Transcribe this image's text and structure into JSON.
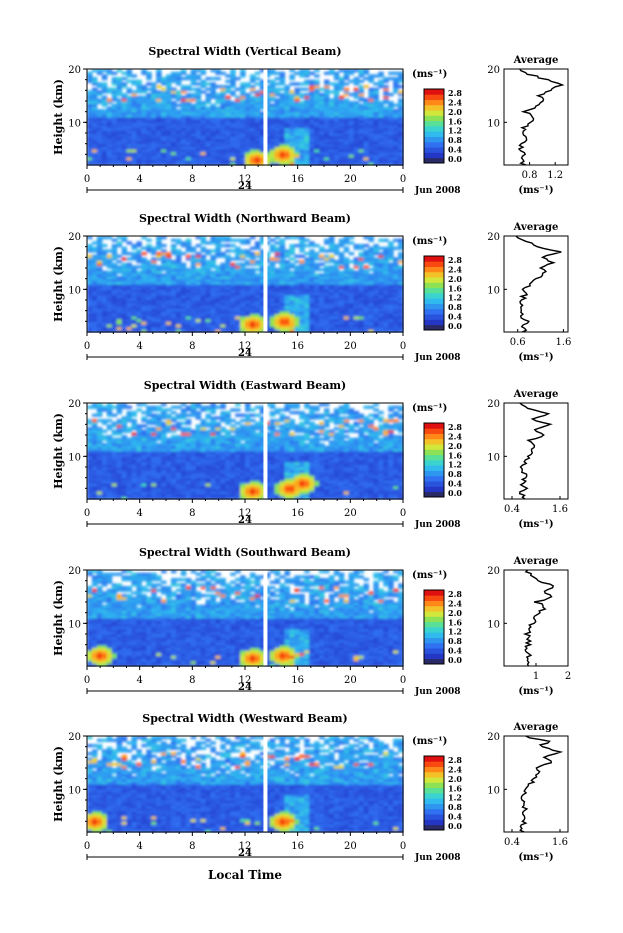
{
  "shared": {
    "ylabel": "Height (km)",
    "y_ticks": [
      "20",
      "10"
    ],
    "x_ticks": [
      "0",
      "4",
      "8",
      "12",
      "16",
      "20",
      "0"
    ],
    "day_label": "24",
    "date_label": "Jun 2008",
    "cb_unit": "(ms⁻¹)",
    "cb_ticks": [
      "2.8",
      "2.4",
      "2.0",
      "1.6",
      "1.2",
      "0.8",
      "0.4",
      "0.0"
    ],
    "avg_title": "Average",
    "avg_unit": "(ms⁻¹)",
    "xlabel": "Local Time"
  },
  "chart_data": [
    {
      "type": "heatmap",
      "title": "Spectral Width (Vertical Beam)",
      "xlabel": "Local Time",
      "ylabel": "Height (km)",
      "xlim": [
        0,
        24
      ],
      "ylim": [
        2,
        20
      ],
      "zlim": [
        0,
        2.8
      ],
      "notable_features": [
        {
          "t": 12.9,
          "h": 3
        },
        {
          "t": 14.9,
          "h": 4
        }
      ],
      "average_profile": {
        "xlim": [
          0.4,
          1.4
        ],
        "x_ticks": [
          "0.8",
          "1.2"
        ],
        "h": [
          2,
          3,
          4,
          5,
          6,
          7,
          8,
          9,
          10,
          11,
          12,
          13,
          14,
          15,
          16,
          17,
          18,
          19,
          20
        ],
        "x": [
          0.72,
          0.66,
          0.74,
          0.64,
          0.7,
          0.75,
          0.68,
          0.72,
          0.8,
          0.86,
          0.74,
          0.9,
          1.02,
          0.96,
          1.1,
          1.3,
          1.05,
          0.8,
          0.65
        ]
      }
    },
    {
      "type": "heatmap",
      "title": "Spectral Width (Northward Beam)",
      "xlabel": "Local Time",
      "ylabel": "Height (km)",
      "xlim": [
        0,
        24
      ],
      "ylim": [
        2,
        20
      ],
      "zlim": [
        0,
        2.8
      ],
      "notable_features": [
        {
          "t": 12.6,
          "h": 3.5
        },
        {
          "t": 15.0,
          "h": 4
        }
      ],
      "average_profile": {
        "xlim": [
          0.3,
          1.7
        ],
        "x_ticks": [
          "0.6",
          "1.6"
        ],
        "h": [
          2,
          3,
          4,
          5,
          6,
          7,
          8,
          9,
          10,
          11,
          12,
          13,
          14,
          15,
          16,
          17,
          18,
          19,
          20
        ],
        "x": [
          0.75,
          0.68,
          0.8,
          0.7,
          0.66,
          0.72,
          0.7,
          0.75,
          0.72,
          0.9,
          1.0,
          1.2,
          1.1,
          1.4,
          1.1,
          1.5,
          1.0,
          0.8,
          0.55
        ]
      }
    },
    {
      "type": "heatmap",
      "title": "Spectral Width (Eastward Beam)",
      "xlabel": "Local Time",
      "ylabel": "Height (km)",
      "xlim": [
        0,
        24
      ],
      "ylim": [
        2,
        20
      ],
      "zlim": [
        0,
        2.8
      ],
      "notable_features": [
        {
          "t": 12.6,
          "h": 3.5
        },
        {
          "t": 15.4,
          "h": 4
        },
        {
          "t": 16.4,
          "h": 5
        }
      ],
      "average_profile": {
        "xlim": [
          0.2,
          1.8
        ],
        "x_ticks": [
          "0.4",
          "1.6"
        ],
        "h": [
          2,
          3,
          4,
          5,
          6,
          7,
          8,
          9,
          10,
          11,
          12,
          13,
          14,
          15,
          16,
          17,
          18,
          19,
          20
        ],
        "x": [
          0.7,
          0.62,
          0.72,
          0.66,
          0.74,
          0.7,
          0.64,
          0.72,
          0.8,
          0.9,
          1.0,
          0.85,
          1.2,
          1.0,
          1.4,
          0.9,
          1.3,
          0.8,
          0.55
        ]
      }
    },
    {
      "type": "heatmap",
      "title": "Spectral Width (Southward Beam)",
      "xlabel": "Local Time",
      "ylabel": "Height (km)",
      "xlim": [
        0,
        24
      ],
      "ylim": [
        2,
        20
      ],
      "zlim": [
        0,
        2.8
      ],
      "notable_features": [
        {
          "t": 12.6,
          "h": 3.5
        },
        {
          "t": 14.9,
          "h": 4
        },
        {
          "t": 1.0,
          "h": 4
        }
      ],
      "average_profile": {
        "xlim": [
          0,
          2
        ],
        "x_ticks": [
          "1",
          "2"
        ],
        "h": [
          2,
          3,
          4,
          5,
          6,
          7,
          8,
          9,
          10,
          11,
          12,
          13,
          14,
          15,
          16,
          17,
          18,
          19,
          20
        ],
        "x": [
          0.8,
          0.7,
          0.78,
          0.72,
          0.76,
          0.8,
          0.74,
          0.82,
          0.9,
          1.0,
          1.1,
          1.3,
          1.0,
          1.5,
          1.2,
          1.6,
          1.1,
          0.9,
          0.7
        ]
      }
    },
    {
      "type": "heatmap",
      "title": "Spectral Width (Westward Beam)",
      "xlabel": "Local Time",
      "ylabel": "Height (km)",
      "xlim": [
        0,
        24
      ],
      "ylim": [
        2,
        20
      ],
      "zlim": [
        0,
        2.8
      ],
      "notable_features": [
        {
          "t": 14.9,
          "h": 4
        },
        {
          "t": 0.6,
          "h": 4
        }
      ],
      "average_profile": {
        "xlim": [
          0.2,
          1.8
        ],
        "x_ticks": [
          "0.4",
          "1.6"
        ],
        "h": [
          2,
          3,
          4,
          5,
          6,
          7,
          8,
          9,
          10,
          11,
          12,
          13,
          14,
          15,
          16,
          17,
          18,
          19,
          20
        ],
        "x": [
          0.7,
          0.62,
          0.72,
          0.66,
          0.7,
          0.74,
          0.68,
          0.72,
          0.78,
          0.86,
          0.95,
          1.1,
          1.0,
          1.4,
          1.2,
          1.6,
          1.1,
          1.3,
          0.7
        ]
      }
    }
  ]
}
